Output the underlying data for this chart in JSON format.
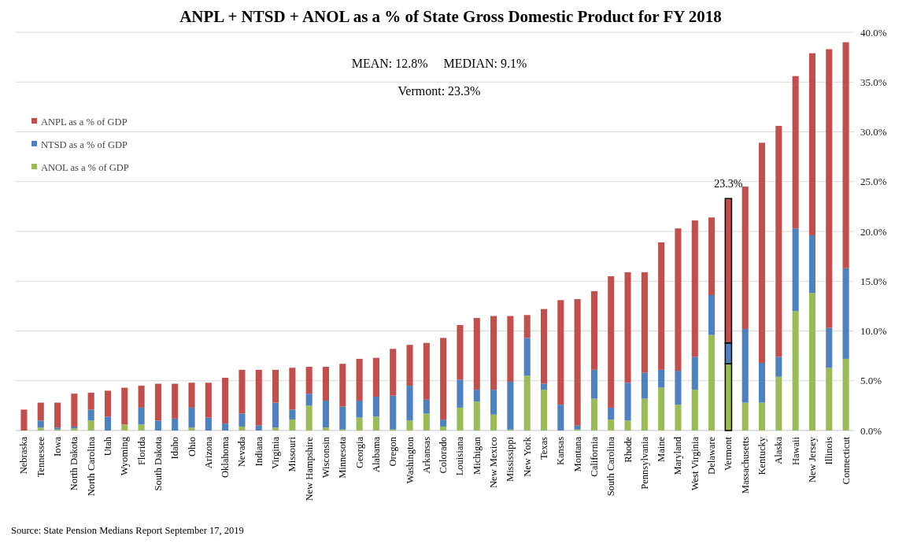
{
  "chart_data": {
    "type": "bar",
    "title": "ANPL + NTSD + ANOL as a % of State Gross Domestic Product for FY 2018",
    "categories": [
      "Nebraska",
      "Tennessee",
      "Iowa",
      "North Dakota",
      "North Carolina",
      "Utah",
      "Wyoming",
      "Florida",
      "South Dakota",
      "Idaho",
      "Ohio",
      "Arizona",
      "Oklahoma",
      "Nevada",
      "Indiana",
      "Virginia",
      "Missouri",
      "New Hampshire",
      "Wisconsin",
      "Minnesota",
      "Georgia",
      "Alabama",
      "Oregon",
      "Washington",
      "Arkansas",
      "Colorado",
      "Louisiana",
      "Michigan",
      "New Mexico",
      "Mississippi",
      "New York",
      "Texas",
      "Kansas",
      "Montana",
      "California",
      "South Carolina",
      "Rhode",
      "Pennsylvania",
      "Maine",
      "Maryland",
      "West Virginia",
      "Delaware",
      "Vermont",
      "Massachusetts",
      "Kentucky",
      "Alaska",
      "Hawaii",
      "New Jersey",
      "Illinois",
      "Connecticut"
    ],
    "stacked": true,
    "series": [
      {
        "name": "ANOL as a % of GDP",
        "color": "#9bbb59",
        "values": [
          0,
          0.3,
          0.1,
          0.2,
          1.0,
          0,
          0.6,
          0.6,
          0,
          0,
          0.3,
          0,
          0,
          0.4,
          0,
          0.3,
          1.1,
          2.5,
          0.3,
          0.1,
          1.3,
          1.4,
          0.1,
          1.0,
          1.7,
          0.4,
          2.3,
          2.9,
          1.6,
          0.1,
          5.5,
          4.1,
          0,
          0.1,
          3.2,
          1.1,
          1.0,
          3.2,
          4.3,
          2.6,
          4.1,
          9.6,
          6.7,
          2.8,
          2.8,
          5.4,
          12.0,
          13.8,
          6.3,
          7.2
        ]
      },
      {
        "name": "NTSD as a % of GDP",
        "color": "#4f81bd",
        "values": [
          0,
          0.7,
          0.2,
          0.2,
          1.1,
          1.4,
          0,
          1.7,
          1.0,
          1.2,
          2.0,
          1.3,
          0.7,
          1.3,
          0.5,
          2.5,
          1.0,
          1.2,
          2.7,
          2.3,
          1.7,
          2.0,
          3.4,
          3.5,
          1.4,
          0.7,
          2.8,
          1.2,
          2.5,
          4.8,
          3.8,
          0.6,
          2.6,
          0.4,
          2.9,
          1.2,
          3.8,
          2.6,
          1.8,
          3.4,
          3.3,
          4.0,
          2.1,
          7.4,
          4.0,
          2.0,
          8.3,
          5.8,
          4.0,
          9.1
        ]
      },
      {
        "name": "ANPL as a % of GDP",
        "color": "#c0504d",
        "values": [
          2.1,
          1.8,
          2.5,
          3.3,
          1.7,
          2.6,
          3.7,
          2.2,
          3.7,
          3.5,
          2.5,
          3.5,
          4.6,
          4.4,
          5.6,
          3.3,
          4.2,
          2.7,
          3.4,
          4.3,
          4.2,
          3.9,
          4.7,
          4.1,
          5.7,
          8.2,
          5.5,
          7.2,
          7.4,
          6.6,
          2.3,
          7.5,
          10.5,
          12.7,
          7.9,
          13.2,
          11.1,
          10.1,
          12.8,
          14.3,
          13.7,
          7.8,
          14.5,
          14.3,
          22.1,
          23.2,
          15.3,
          18.3,
          28.0,
          22.7
        ]
      }
    ],
    "ylim": [
      0,
      40
    ],
    "yticks": [
      {
        "value": 0,
        "label": "0.0%"
      },
      {
        "value": 5,
        "label": "5.0%"
      },
      {
        "value": 10,
        "label": "10.0%"
      },
      {
        "value": 15,
        "label": "15.0%"
      },
      {
        "value": 20,
        "label": "20.0%"
      },
      {
        "value": 25,
        "label": "25.0%"
      },
      {
        "value": 30,
        "label": "30.0%"
      },
      {
        "value": 35,
        "label": "35.0%"
      },
      {
        "value": 40,
        "label": "40.0%"
      }
    ],
    "grid": "y",
    "legend": "top left",
    "annotations": [
      "MEAN: 12.8%     MEDIAN: 9.1%",
      "Vermont: 23.3%",
      {
        "text": "23.3%",
        "x": "Vermont",
        "y": 23.3
      },
      "Source: State Pension Medians Report September 17, 2019"
    ]
  }
}
